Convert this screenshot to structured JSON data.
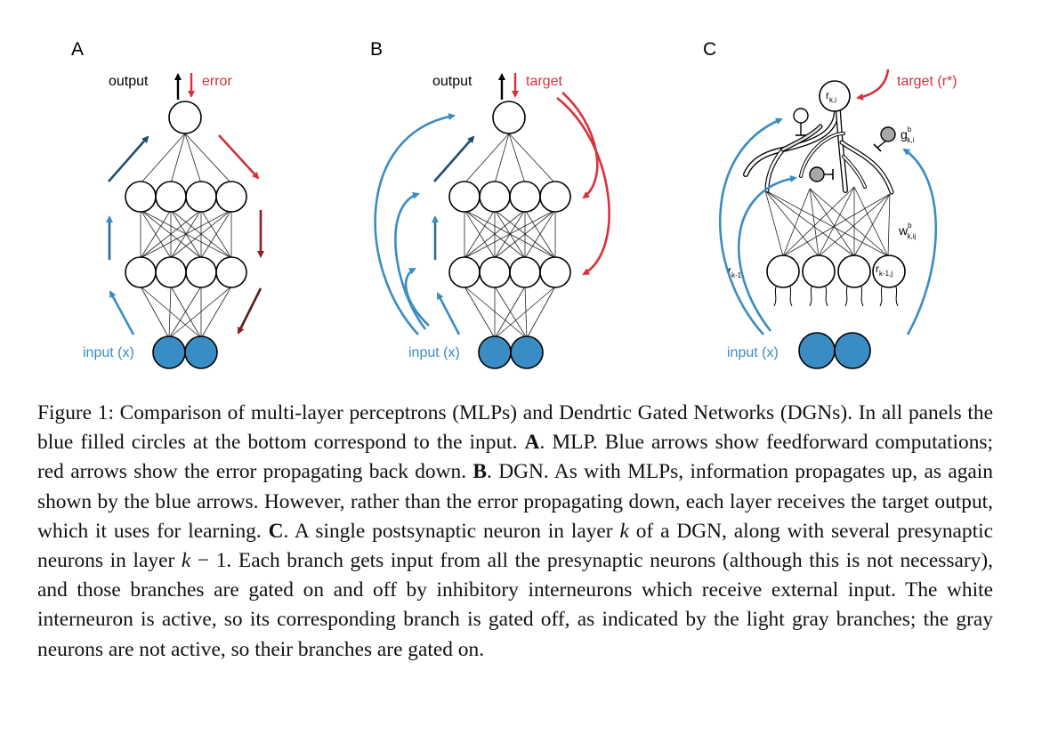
{
  "panels": {
    "a": {
      "letter": "A",
      "output": "output",
      "error": "error",
      "input": "input (x)"
    },
    "b": {
      "letter": "B",
      "output": "output",
      "target": "target",
      "input": "input (x)"
    },
    "c": {
      "letter": "C",
      "target": "target (r*)",
      "input": "input (x)",
      "r_ki": "r",
      "r_ki_sub": "k,i",
      "g_main": "g",
      "g_sup": "b",
      "g_sub": "k,i",
      "w_main": "w",
      "w_sup": "b",
      "w_sub": "k,ij",
      "r_k1": "r",
      "r_k1_sub": "k-1",
      "r_k1j": "r",
      "r_k1j_sub": "k-1,j"
    }
  },
  "colors": {
    "blue": "#3a8cc4",
    "dark_blue": "#1f4e6e",
    "red": "#d9303c",
    "dark_red": "#6b1a1e",
    "gray": "#a8a8a8"
  },
  "caption": {
    "lead": "Figure 1:",
    "s1": " Comparison of multi-layer perceptrons (MLPs) and Dendrtic Gated Networks (DGNs). In all panels the blue filled circles at the bottom correspond to the input. ",
    "a_label": "A",
    "s2": ". MLP. Blue arrows show feedforward computations; red arrows show the error propagating back down. ",
    "b_label": "B",
    "s3": ". DGN. As with MLPs, information propagates up, as again shown by the blue arrows. However, rather than the error propagating down, each layer receives the target output, which it uses for learning. ",
    "c_label": "C",
    "s4": ". A single postsynaptic neuron in layer ",
    "k1": "k",
    "s5": " of a DGN, along with several presynaptic neurons in layer ",
    "k2": "k",
    "s6": " − 1. Each branch gets input from all the presynaptic neurons (although this is not necessary), and those branches are gated on and off by inhibitory interneurons which receive external input. The white interneuron is active, so its corresponding branch is gated off, as indicated by the light gray branches; the gray neurons are not active, so their branches are gated on."
  }
}
